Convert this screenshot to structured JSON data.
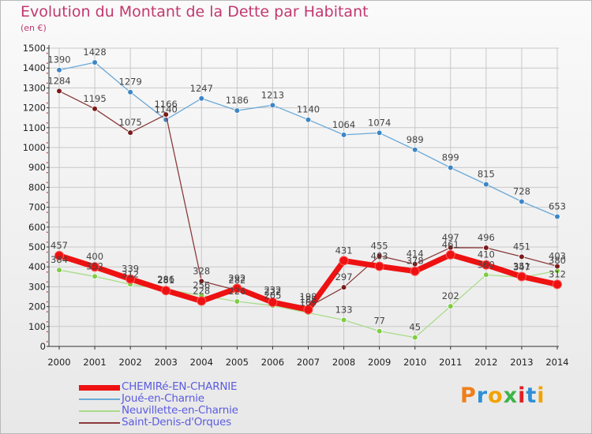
{
  "title": "Evolution du Montant de la Dette par Habitant",
  "subtitle": "(en €)",
  "colors": {
    "title": "#c2386f",
    "grid": "#c8c8c8",
    "axis": "#333333"
  },
  "logo": {
    "text": [
      "P",
      "r",
      "o",
      "x",
      "i",
      "t",
      "i"
    ],
    "colors": [
      "#ef7f1a",
      "#2f8fd6",
      "#f2a300",
      "#3bb44a",
      "#e31e24",
      "#2f8fd6",
      "#f2a300"
    ]
  },
  "chart_data": {
    "type": "line",
    "x": [
      "2000",
      "2001",
      "2002",
      "2003",
      "2004",
      "2005",
      "2006",
      "2007",
      "2008",
      "2009",
      "2010",
      "2011",
      "2012",
      "2013",
      "2014"
    ],
    "ylim": [
      0,
      1500
    ],
    "yticks": [
      "0",
      "100",
      "200",
      "300",
      "400",
      "500",
      "600",
      "700",
      "800",
      "900",
      "1000",
      "1100",
      "1200",
      "1300",
      "1400",
      "1500"
    ],
    "grid": true,
    "legend_position": "bottom-left",
    "series": [
      {
        "name": "Joué-en-Charnie",
        "color": "#6aa9d8",
        "marker_color": "#3d86c6",
        "width": 1.3,
        "values": [
          1390,
          1428,
          1279,
          1140,
          1247,
          1186,
          1213,
          1140,
          1064,
          1074,
          989,
          899,
          815,
          728,
          653
        ],
        "labels": [
          "1390",
          "1428",
          "1279",
          "1140",
          "1247",
          "1186",
          "1213",
          "1140",
          "1064",
          "1074",
          "989",
          "899",
          "815",
          "728",
          "653"
        ]
      },
      {
        "name": "Neuvillette-en-Charnie",
        "color": "#a9dc8a",
        "marker_color": "#7fcc44",
        "width": 1.3,
        "values": [
          384,
          352,
          312,
          286,
          256,
          226,
          205,
          169,
          133,
          77,
          45,
          202,
          360,
          347,
          380
        ],
        "labels": [
          "384",
          "352",
          "312",
          "286",
          "256",
          "226",
          "205",
          "169",
          "133",
          "77",
          "45",
          "202",
          "360",
          "347",
          "380"
        ]
      },
      {
        "name": "Saint-Denis-d'Orques",
        "color": "#8a3b3b",
        "marker_color": "#7a1c1c",
        "width": 1.3,
        "values": [
          1284,
          1195,
          1075,
          1166,
          328,
          282,
          232,
          198,
          297,
          455,
          414,
          497,
          496,
          451,
          403
        ],
        "labels": [
          "1284",
          "1195",
          "1075",
          "1166",
          "328",
          "282",
          "232",
          "198",
          "297",
          "455",
          "414",
          "497",
          "496",
          "451",
          "403"
        ]
      },
      {
        "name": "CHEMIRé-EN-CHARNIE",
        "color": "#ee1111",
        "marker_color": "#ee1111",
        "width": 7,
        "values": [
          457,
          400,
          339,
          281,
          228,
          292,
          222,
          185,
          431,
          403,
          378,
          461,
          410,
          351,
          312
        ],
        "labels": [
          "457",
          "400",
          "339",
          "281",
          "228",
          "292",
          "222",
          "185",
          "431",
          "403",
          "378",
          "461",
          "410",
          "351",
          "312"
        ]
      }
    ],
    "legend": [
      {
        "name": "CHEMIRé-EN-CHARNIE",
        "color": "#ee1111",
        "text_color": "#5b5be0",
        "thickness": 7
      },
      {
        "name": "Joué-en-Charnie",
        "color": "#6aa9d8",
        "text_color": "#5b5be0",
        "thickness": 2
      },
      {
        "name": "Neuvillette-en-Charnie",
        "color": "#a9dc8a",
        "text_color": "#5b5be0",
        "thickness": 2
      },
      {
        "name": "Saint-Denis-d'Orques",
        "color": "#8a3b3b",
        "text_color": "#5b5be0",
        "thickness": 2
      }
    ]
  }
}
